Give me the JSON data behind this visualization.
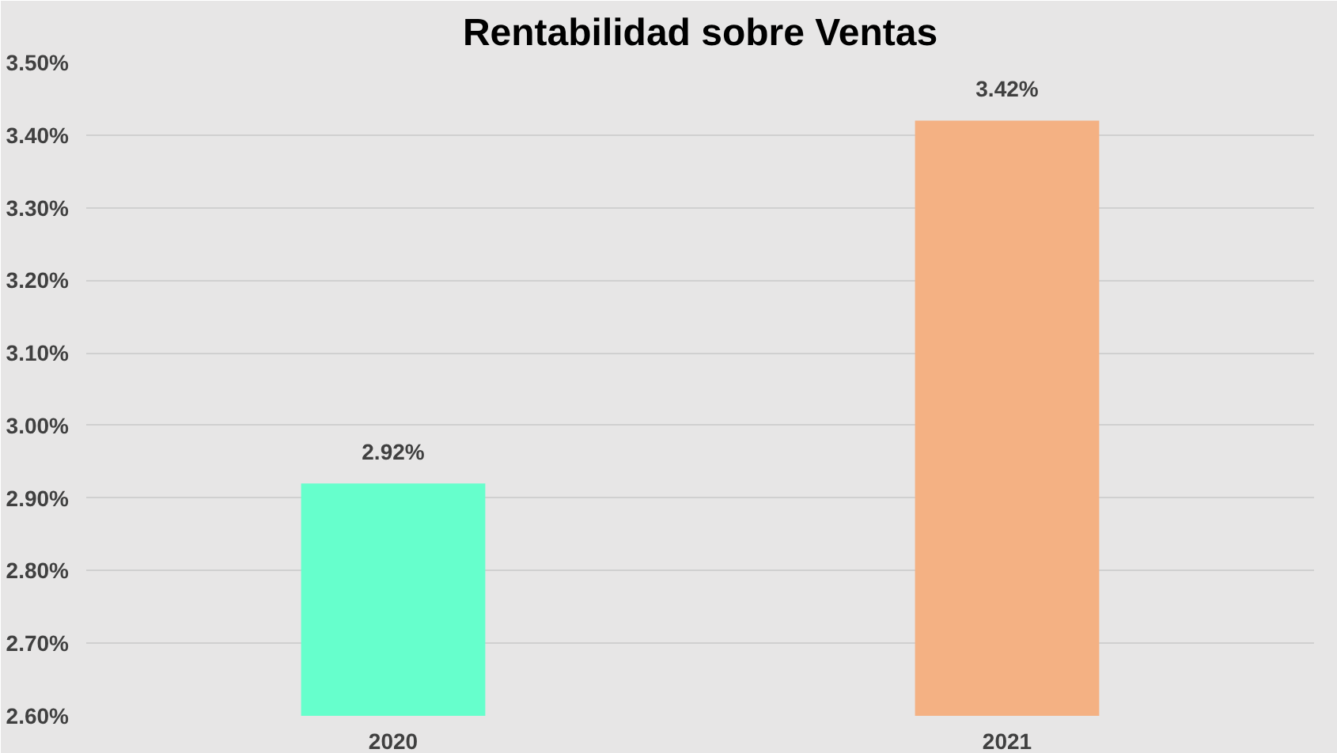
{
  "chart_data": {
    "type": "bar",
    "title": "Rentabilidad sobre Ventas",
    "categories": [
      "2020",
      "2021"
    ],
    "values": [
      2.92,
      3.42
    ],
    "colors": [
      "#66ffcc",
      "#f4b183"
    ],
    "value_labels": [
      "2.92%",
      "3.42%"
    ],
    "ylim": [
      2.6,
      3.5
    ],
    "yticks": [
      {
        "value": 2.6,
        "label": "2.60%"
      },
      {
        "value": 2.7,
        "label": "2.70%"
      },
      {
        "value": 2.8,
        "label": "2.80%"
      },
      {
        "value": 2.9,
        "label": "2.90%"
      },
      {
        "value": 3.0,
        "label": "3.00%"
      },
      {
        "value": 3.1,
        "label": "3.10%"
      },
      {
        "value": 3.2,
        "label": "3.20%"
      },
      {
        "value": 3.3,
        "label": "3.30%"
      },
      {
        "value": 3.4,
        "label": "3.40%"
      },
      {
        "value": 3.5,
        "label": "3.50%"
      }
    ],
    "grid": "y"
  }
}
